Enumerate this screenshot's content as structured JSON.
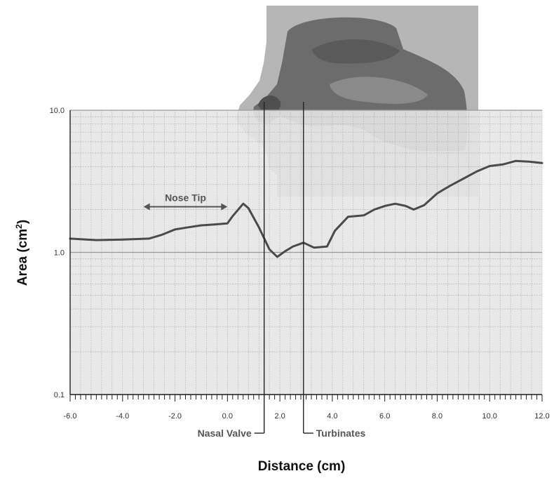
{
  "chart_data": {
    "type": "line",
    "title": "",
    "xlabel": "Distance (cm)",
    "ylabel_main": "Area (cm",
    "ylabel_exp": "2",
    "ylabel_close": ")",
    "ylabel": "Area (cm2)",
    "y_scale": "log",
    "xlim": [
      -6.0,
      12.0
    ],
    "ylim": [
      0.1,
      10.0
    ],
    "grid": true,
    "x_ticks": [
      {
        "value": -6.0,
        "label": "-6.0"
      },
      {
        "value": -4.0,
        "label": "-4.0"
      },
      {
        "value": -2.0,
        "label": "-2.0"
      },
      {
        "value": 0.0,
        "label": "0.0"
      },
      {
        "value": 2.0,
        "label": "2.0"
      },
      {
        "value": 4.0,
        "label": "4.0"
      },
      {
        "value": 6.0,
        "label": "6.0"
      },
      {
        "value": 8.0,
        "label": "8.0"
      },
      {
        "value": 10.0,
        "label": "10.0"
      },
      {
        "value": 12.0,
        "label": "12.0"
      }
    ],
    "y_ticks": [
      {
        "value": 10.0,
        "label": "10.0"
      },
      {
        "value": 1.0,
        "label": "1.0"
      },
      {
        "value": 0.1,
        "label": "0.1"
      }
    ],
    "series": [
      {
        "color": "#4a4a4a",
        "x": [
          -6.0,
          -5.0,
          -4.0,
          -3.0,
          -2.5,
          -2.0,
          -1.5,
          -1.0,
          -0.5,
          0.0,
          0.2,
          0.6,
          0.8,
          1.2,
          1.6,
          1.9,
          2.2,
          2.5,
          2.9,
          3.3,
          3.8,
          4.1,
          4.6,
          5.2,
          5.6,
          6.0,
          6.4,
          6.8,
          7.1,
          7.5,
          8.0,
          8.5,
          9.0,
          9.5,
          10.0,
          10.5,
          11.0,
          11.5,
          12.0
        ],
        "y": [
          1.25,
          1.22,
          1.23,
          1.25,
          1.33,
          1.45,
          1.5,
          1.55,
          1.57,
          1.6,
          1.8,
          2.2,
          2.05,
          1.5,
          1.05,
          0.93,
          1.02,
          1.1,
          1.17,
          1.08,
          1.1,
          1.42,
          1.78,
          1.82,
          2.0,
          2.12,
          2.2,
          2.12,
          2.0,
          2.15,
          2.6,
          2.95,
          3.3,
          3.7,
          4.05,
          4.15,
          4.4,
          4.35,
          4.25
        ]
      }
    ],
    "annotations": [
      {
        "label": "Nose Tip",
        "kind": "range",
        "x_from": -3.2,
        "x_to": 0.0,
        "y": 2.4
      },
      {
        "label": "Nasal Valve",
        "kind": "marker",
        "x": 1.4
      },
      {
        "label": "Turbinates",
        "kind": "marker",
        "x": 2.9
      }
    ]
  },
  "colors": {
    "plot_background": "#e6e6e6",
    "grid": "#9a9a9a",
    "curve": "#4a4a4a",
    "silhouette_outer": "#a8a8a8",
    "silhouette_inner": "#6e6e6e"
  },
  "illustration": {
    "name": "nasal-cavity-silhouette"
  }
}
